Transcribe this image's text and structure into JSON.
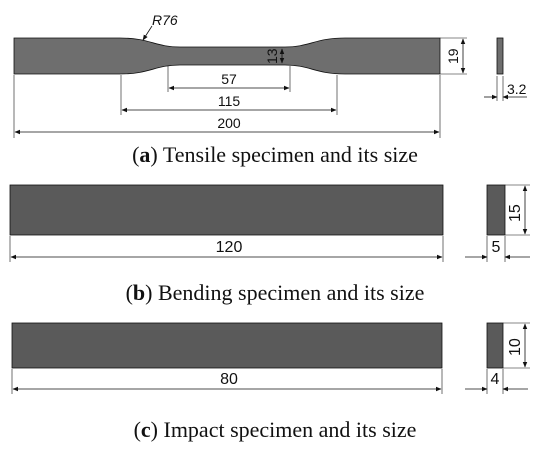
{
  "colors": {
    "specimen_fill": "#6e6e6e",
    "line": "#111111",
    "background": "#ffffff"
  },
  "tensile": {
    "radius_label": "R76",
    "dims": {
      "total_length": "200",
      "length_115": "115",
      "gauge_length": "57",
      "gauge_width": "13",
      "grip_width": "19",
      "thickness": "3.2"
    },
    "caption": {
      "prefix": "(",
      "letter": "a",
      "text": ") Tensile specimen and its size"
    }
  },
  "bending": {
    "dims": {
      "length": "120",
      "height": "15",
      "thickness": "5"
    },
    "caption": {
      "prefix": "(",
      "letter": "b",
      "text": ") Bending specimen and its size"
    }
  },
  "impact": {
    "dims": {
      "length": "80",
      "height": "10",
      "thickness": "4"
    },
    "caption": {
      "prefix": "(",
      "letter": "c",
      "text": ") Impact specimen and its size"
    }
  }
}
